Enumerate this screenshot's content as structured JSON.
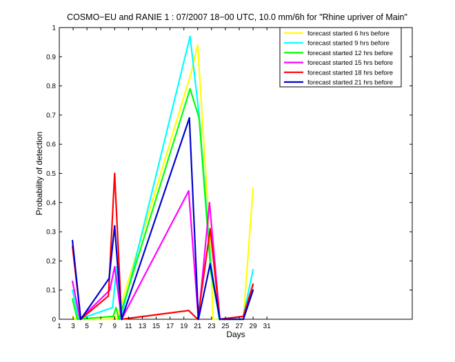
{
  "chart_data": {
    "type": "line",
    "title": "COSMO−EU and RANIE 1 : 07/2007 18−00 UTC, 10.0 mm/6h for \"Rhine upriver of Main\"",
    "xlabel": "Days",
    "ylabel": "Probability of detection",
    "xlim": [
      1,
      52
    ],
    "ylim": [
      0,
      1
    ],
    "x_ticks": [
      1,
      3,
      5,
      7,
      9,
      11,
      13,
      15,
      17,
      19,
      21,
      23,
      25,
      27,
      29,
      31
    ],
    "y_ticks": [
      0,
      0.1,
      0.2,
      0.3,
      0.4,
      0.5,
      0.6,
      0.7,
      0.8,
      0.9,
      1
    ],
    "y_tick_labels": [
      "0",
      "0.1",
      "0.2",
      "0.3",
      "0.4",
      "0.5",
      "0.6",
      "0.7",
      "0.8",
      "0.9",
      "1"
    ],
    "legend_position": "top-right",
    "grid": false,
    "series": [
      {
        "name": "forecast started 6 hrs before",
        "color": "#ffff00",
        "points": [
          [
            2.9,
            0.01
          ],
          [
            3.3,
            0
          ],
          [
            8.7,
            0
          ],
          [
            9.0,
            0.01
          ],
          [
            9.3,
            0
          ],
          [
            20.0,
            0.84
          ],
          [
            21.0,
            0.94
          ],
          [
            22.9,
            0.22
          ],
          [
            23.2,
            0
          ],
          [
            27.6,
            0
          ],
          [
            29.0,
            0.45
          ]
        ]
      },
      {
        "name": "forecast started 9 hrs before",
        "color": "#00ffff",
        "points": [
          [
            2.9,
            0.1
          ],
          [
            3.8,
            0
          ],
          [
            8.7,
            0.04
          ],
          [
            9.3,
            0.18
          ],
          [
            9.9,
            0
          ],
          [
            19.9,
            0.97
          ],
          [
            21.2,
            0.7
          ],
          [
            22.9,
            0.19
          ],
          [
            24.1,
            0
          ],
          [
            27.6,
            0.01
          ],
          [
            29.0,
            0.17
          ]
        ]
      },
      {
        "name": "forecast started 12 hrs before",
        "color": "#00ff00",
        "points": [
          [
            2.9,
            0.07
          ],
          [
            3.6,
            0
          ],
          [
            8.8,
            0.01
          ],
          [
            9.2,
            0.04
          ],
          [
            9.6,
            0
          ],
          [
            19.9,
            0.79
          ],
          [
            21.2,
            0.69
          ],
          [
            22.9,
            0.16
          ],
          [
            24.2,
            0
          ],
          [
            27.6,
            0
          ],
          [
            29.0,
            0.1
          ]
        ]
      },
      {
        "name": "forecast started 15 hrs before",
        "color": "#ff00ff",
        "points": [
          [
            2.9,
            0.13
          ],
          [
            4.0,
            0
          ],
          [
            8.3,
            0.1
          ],
          [
            9.0,
            0.18
          ],
          [
            10.0,
            0
          ],
          [
            19.7,
            0.44
          ],
          [
            21.1,
            0
          ],
          [
            22.7,
            0.4
          ],
          [
            24.2,
            0
          ],
          [
            27.6,
            0.01
          ],
          [
            29.0,
            0.12
          ]
        ]
      },
      {
        "name": "forecast started 18 hrs before",
        "color": "#ff0000",
        "points": [
          [
            2.9,
            0.25
          ],
          [
            4.1,
            0
          ],
          [
            8.1,
            0.08
          ],
          [
            9.0,
            0.5
          ],
          [
            10.0,
            0
          ],
          [
            19.7,
            0.03
          ],
          [
            21.0,
            0
          ],
          [
            22.8,
            0.31
          ],
          [
            24.2,
            0
          ],
          [
            27.6,
            0.01
          ],
          [
            29.0,
            0.12
          ]
        ]
      },
      {
        "name": "forecast started 21 hrs before",
        "color": "#0000cc",
        "points": [
          [
            2.9,
            0.27
          ],
          [
            4.1,
            0
          ],
          [
            8.2,
            0.14
          ],
          [
            9.0,
            0.32
          ],
          [
            10.0,
            0
          ],
          [
            19.8,
            0.69
          ],
          [
            21.1,
            0
          ],
          [
            22.8,
            0.19
          ],
          [
            24.2,
            0
          ],
          [
            27.6,
            0
          ],
          [
            29.0,
            0.1
          ]
        ]
      }
    ]
  }
}
